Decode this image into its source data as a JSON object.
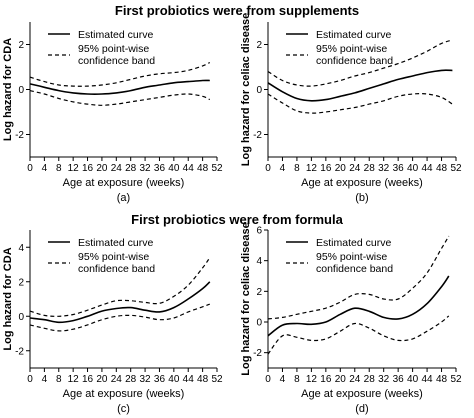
{
  "row_titles": [
    "First probiotics were from supplements",
    "First probiotics were from formula"
  ],
  "chart_data": [
    {
      "type": "line",
      "panel_label": "(a)",
      "title": "",
      "xlabel": "Age at exposure (weeks)",
      "ylabel": "Log hazard for CDA",
      "xlim": [
        0,
        52
      ],
      "ylim": [
        -3,
        3
      ],
      "xticks": [
        0,
        4,
        8,
        12,
        16,
        20,
        24,
        28,
        32,
        36,
        40,
        44,
        48,
        52
      ],
      "yticks": [
        -2,
        0,
        2
      ],
      "legend": {
        "position": "top-left",
        "entries": [
          "Estimated curve",
          "95% point-wise confidence band"
        ]
      },
      "x": [
        0,
        4,
        8,
        12,
        16,
        20,
        24,
        28,
        32,
        36,
        40,
        44,
        48,
        50
      ],
      "series": [
        {
          "name": "Estimated curve",
          "style": "solid",
          "values": [
            0.25,
            0.1,
            -0.05,
            -0.15,
            -0.2,
            -0.2,
            -0.15,
            -0.05,
            0.1,
            0.2,
            0.3,
            0.35,
            0.4,
            0.4
          ]
        },
        {
          "style": "dashed",
          "values": [
            0.55,
            0.35,
            0.2,
            0.15,
            0.15,
            0.2,
            0.3,
            0.45,
            0.6,
            0.7,
            0.75,
            0.85,
            1.05,
            1.2
          ]
        },
        {
          "style": "dashed",
          "values": [
            -0.05,
            -0.2,
            -0.4,
            -0.55,
            -0.65,
            -0.7,
            -0.65,
            -0.55,
            -0.45,
            -0.35,
            -0.25,
            -0.2,
            -0.3,
            -0.45
          ]
        }
      ]
    },
    {
      "type": "line",
      "panel_label": "(b)",
      "title": "",
      "xlabel": "Age at exposure (weeks)",
      "ylabel": "Log hazard for celiac disease",
      "xlim": [
        0,
        52
      ],
      "ylim": [
        -3,
        3
      ],
      "xticks": [
        0,
        4,
        8,
        12,
        16,
        20,
        24,
        28,
        32,
        36,
        40,
        44,
        48,
        52
      ],
      "yticks": [
        -2,
        0,
        2
      ],
      "legend": {
        "position": "top-left",
        "entries": [
          "Estimated curve",
          "95% point-wise confidence band"
        ]
      },
      "x": [
        0,
        4,
        8,
        12,
        16,
        20,
        24,
        28,
        32,
        36,
        40,
        44,
        48,
        51
      ],
      "series": [
        {
          "name": "Estimated curve",
          "style": "solid",
          "values": [
            0.3,
            -0.1,
            -0.4,
            -0.5,
            -0.45,
            -0.3,
            -0.15,
            0.05,
            0.25,
            0.45,
            0.6,
            0.75,
            0.85,
            0.85
          ]
        },
        {
          "style": "dashed",
          "values": [
            0.8,
            0.4,
            0.2,
            0.15,
            0.25,
            0.4,
            0.6,
            0.75,
            0.95,
            1.15,
            1.4,
            1.7,
            2.05,
            2.2
          ]
        },
        {
          "style": "dashed",
          "values": [
            -0.2,
            -0.6,
            -0.95,
            -1.05,
            -1.0,
            -0.9,
            -0.8,
            -0.65,
            -0.5,
            -0.3,
            -0.2,
            -0.2,
            -0.35,
            -0.65
          ]
        }
      ]
    },
    {
      "type": "line",
      "panel_label": "(c)",
      "title": "",
      "xlabel": "Age at exposure (weeks)",
      "ylabel": "Log hazard for CDA",
      "xlim": [
        0,
        52
      ],
      "ylim": [
        -3,
        5
      ],
      "xticks": [
        0,
        4,
        8,
        12,
        16,
        20,
        24,
        28,
        32,
        36,
        40,
        44,
        48,
        52
      ],
      "yticks": [
        -2,
        0,
        2,
        4
      ],
      "legend": {
        "position": "top-left",
        "entries": [
          "Estimated curve",
          "95% point-wise confidence band"
        ]
      },
      "x": [
        0,
        4,
        8,
        12,
        16,
        20,
        24,
        28,
        32,
        36,
        40,
        44,
        48,
        50
      ],
      "series": [
        {
          "name": "Estimated curve",
          "style": "solid",
          "values": [
            -0.1,
            -0.2,
            -0.35,
            -0.25,
            0.0,
            0.3,
            0.45,
            0.5,
            0.35,
            0.25,
            0.5,
            1.0,
            1.6,
            2.0
          ]
        },
        {
          "style": "dashed",
          "values": [
            0.3,
            0.05,
            0.0,
            0.1,
            0.35,
            0.65,
            0.9,
            0.9,
            0.8,
            0.75,
            1.15,
            1.8,
            2.8,
            3.4
          ]
        },
        {
          "style": "dashed",
          "values": [
            -0.5,
            -0.7,
            -0.85,
            -0.75,
            -0.5,
            -0.2,
            0.0,
            0.05,
            -0.05,
            -0.2,
            -0.1,
            0.25,
            0.55,
            0.7
          ]
        }
      ]
    },
    {
      "type": "line",
      "panel_label": "(d)",
      "title": "",
      "xlabel": "Age at exposure (weeks)",
      "ylabel": "Log hazard for celiac disease",
      "xlim": [
        0,
        52
      ],
      "ylim": [
        -3,
        6
      ],
      "xticks": [
        0,
        4,
        8,
        12,
        16,
        20,
        24,
        28,
        32,
        36,
        40,
        44,
        48,
        52
      ],
      "yticks": [
        -2,
        0,
        2,
        4,
        6
      ],
      "legend": {
        "position": "top-left",
        "entries": [
          "Estimated curve",
          "95% point-wise confidence band"
        ]
      },
      "x": [
        0,
        4,
        8,
        12,
        16,
        20,
        24,
        28,
        32,
        36,
        40,
        44,
        48,
        50
      ],
      "series": [
        {
          "name": "Estimated curve",
          "style": "solid",
          "values": [
            -0.9,
            -0.2,
            -0.1,
            -0.15,
            0.0,
            0.5,
            0.9,
            0.7,
            0.3,
            0.2,
            0.5,
            1.2,
            2.3,
            3.0
          ]
        },
        {
          "style": "dashed",
          "values": [
            0.2,
            0.3,
            0.5,
            0.7,
            0.9,
            1.3,
            1.8,
            1.8,
            1.5,
            1.5,
            2.2,
            3.2,
            4.8,
            5.6
          ]
        },
        {
          "style": "dashed",
          "values": [
            -2.1,
            -0.9,
            -1.0,
            -1.2,
            -1.1,
            -0.6,
            -0.1,
            -0.4,
            -0.9,
            -1.2,
            -1.1,
            -0.6,
            0.0,
            0.4
          ]
        }
      ]
    }
  ]
}
